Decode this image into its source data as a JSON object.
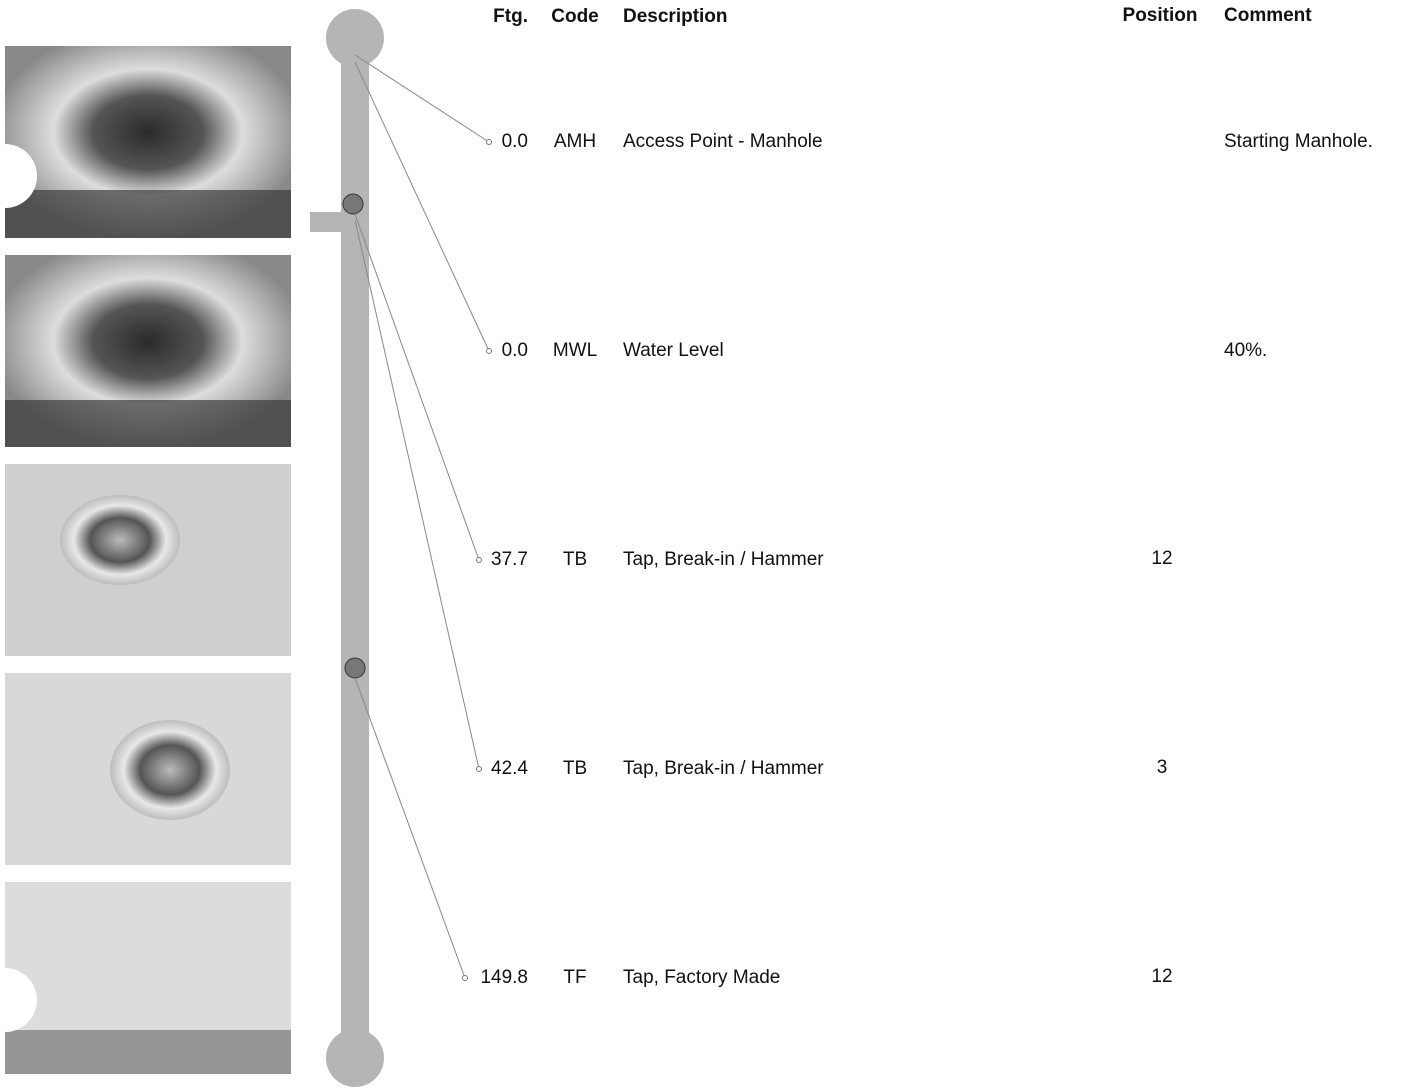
{
  "header": {
    "ftg": "Ftg.",
    "code": "Code",
    "description": "Description",
    "position": "Position",
    "comment": "Comment"
  },
  "rows": [
    {
      "ftg": "0.0",
      "code": "AMH",
      "description": "Access Point - Manhole",
      "comment": "Starting Manhole."
    },
    {
      "ftg": "0.0",
      "code": "MWL",
      "description": "Water Level",
      "comment": "40%."
    },
    {
      "ftg": "37.7",
      "code": "TB",
      "description": "Tap, Break-in / Hammer",
      "position": "12"
    },
    {
      "ftg": "42.4",
      "code": "TB",
      "description": "Tap, Break-in / Hammer",
      "position": "3"
    },
    {
      "ftg": "149.8",
      "code": "TF",
      "description": "Tap, Factory Made",
      "position": "12"
    }
  ]
}
